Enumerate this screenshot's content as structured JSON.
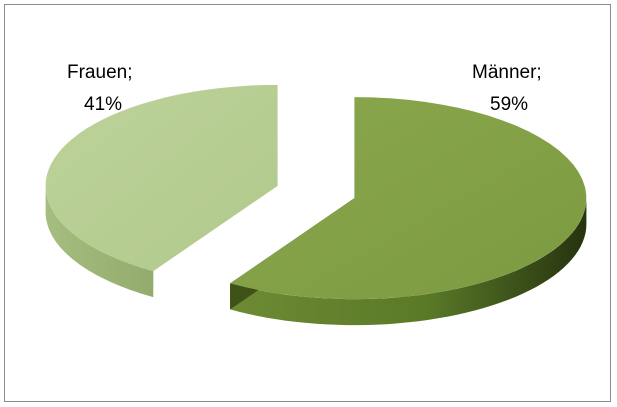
{
  "chart_data": {
    "type": "pie",
    "style": "3d-exploded",
    "slices": [
      {
        "category": "Männer",
        "value": 59,
        "percent_label": "59%",
        "color": "#86a24a"
      },
      {
        "category": "Frauen",
        "value": 41,
        "percent_label": "41%",
        "color": "#b8cf94"
      }
    ],
    "data_labels": {
      "maenner": {
        "line1": "Männer;",
        "line2": "59%"
      },
      "frauen": {
        "line1": "Frauen;",
        "line2": "41%"
      }
    },
    "legend": "none",
    "title": ""
  }
}
